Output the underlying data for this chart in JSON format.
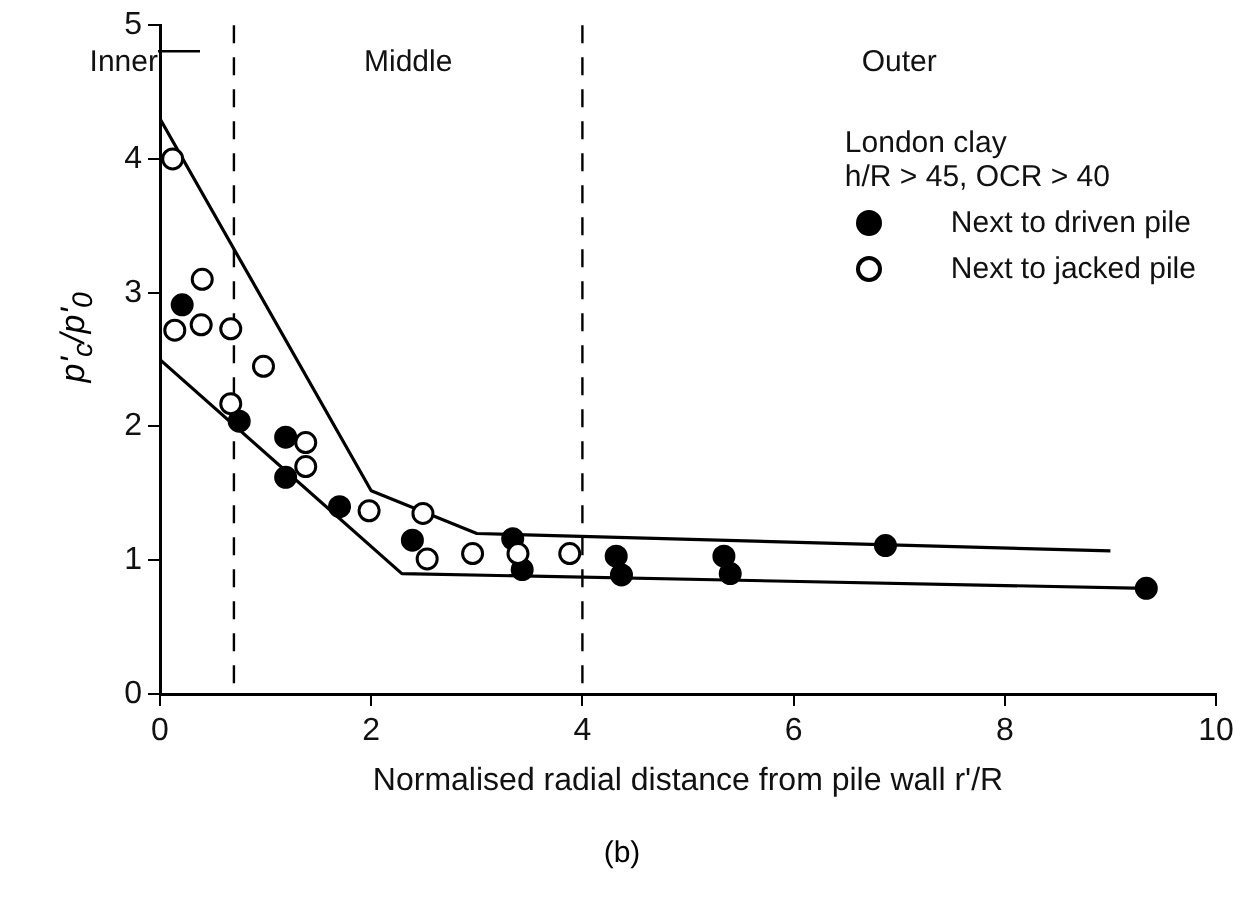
{
  "chart_data": {
    "type": "scatter",
    "xlabel": "Normalised radial distance from pile wall r'/R",
    "ylabel": "p'$_{c}$/p'$_{0}$",
    "legend_title": "London clay",
    "legend": "top right",
    "marker": "circle",
    "grid": false,
    "xlim": [
      0,
      10
    ],
    "xticks": [
      0,
      2,
      4,
      6,
      8,
      10
    ],
    "ylim": [
      0,
      5
    ],
    "yticks": [
      0,
      1,
      2,
      3,
      4,
      5
    ],
    "annotations": [
      "h/R > 45, OCR > 40",
      "(b)",
      "Inner",
      "Middle",
      "Outer"
    ],
    "ref_lines": [
      {
        "axis": "x",
        "value": 0.7,
        "line_style": "dashed",
        "color": "#000000"
      },
      {
        "axis": "x",
        "value": 4,
        "line_style": "dashed",
        "color": "#000000"
      }
    ],
    "series": [
      {
        "name": "Next to driven pile",
        "color": "#000000",
        "x": [
          0.21,
          0.75,
          1.19,
          1.19,
          1.7,
          2.39,
          3.34,
          3.43,
          4.32,
          4.37,
          5.34,
          5.4,
          6.87,
          9.34
        ],
        "values": [
          2.91,
          2.04,
          1.92,
          1.62,
          1.4,
          1.15,
          1.16,
          0.93,
          1.03,
          0.89,
          1.03,
          0.9,
          1.11,
          0.79
        ]
      },
      {
        "name": "Next to jacked pile",
        "color": "#ffffff",
        "x": [
          0.12,
          0.14,
          0.4,
          0.39,
          0.67,
          0.67,
          0.98,
          1.38,
          1.38,
          1.98,
          2.49,
          2.53,
          2.96,
          3.39,
          3.88
        ],
        "values": [
          4.0,
          2.72,
          3.1,
          2.76,
          2.73,
          2.17,
          2.45,
          1.88,
          1.7,
          1.37,
          1.35,
          1.01,
          1.05,
          1.05,
          1.05
        ]
      },
      {
        "type": "line",
        "color": "#000000",
        "marker": "none",
        "x": [
          0,
          2.0,
          3.0,
          9.0
        ],
        "values": [
          4.3,
          1.52,
          1.2,
          1.07
        ]
      },
      {
        "type": "line",
        "color": "#000000",
        "marker": "none",
        "x": [
          0,
          2.29,
          9.34
        ],
        "values": [
          2.5,
          0.9,
          0.79
        ]
      }
    ]
  }
}
